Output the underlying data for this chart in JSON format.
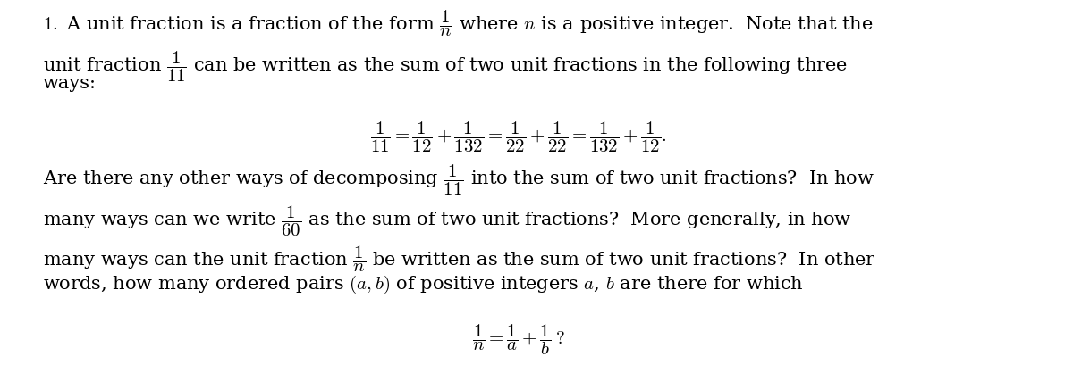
{
  "background_color": "#ffffff",
  "figsize": [
    12.0,
    4.09
  ],
  "dpi": 100,
  "text_color": "#000000",
  "font_size_main": 15,
  "line1": "\\textbf{1.} A unit fraction is a fraction of the form $\\dfrac{1}{n}$ where $n$ is a positive integer.  Note that the",
  "line2": "unit fraction $\\dfrac{1}{11}$ can be written as the sum of two unit fractions in the following three",
  "line3": "ways:",
  "equation1": "$\\dfrac{1}{11} = \\dfrac{1}{12} + \\dfrac{1}{132} = \\dfrac{1}{22} + \\dfrac{1}{22} = \\dfrac{1}{132} + \\dfrac{1}{12}.$",
  "line4": "Are there any other ways of decomposing $\\dfrac{1}{11}$ into the sum of two unit fractions?  In how",
  "line5": "many ways can we write $\\dfrac{1}{60}$ as the sum of two unit fractions?  More generally, in how",
  "line6": "many ways can the unit fraction $\\dfrac{1}{n}$ be written as the sum of two unit fractions?  In other",
  "line7": "words, how many ordered pairs $(a, b)$ of positive integers $a$, $b$ are there for which",
  "equation2": "$\\dfrac{1}{n} = \\dfrac{1}{a} + \\dfrac{1}{b}\\,?$"
}
